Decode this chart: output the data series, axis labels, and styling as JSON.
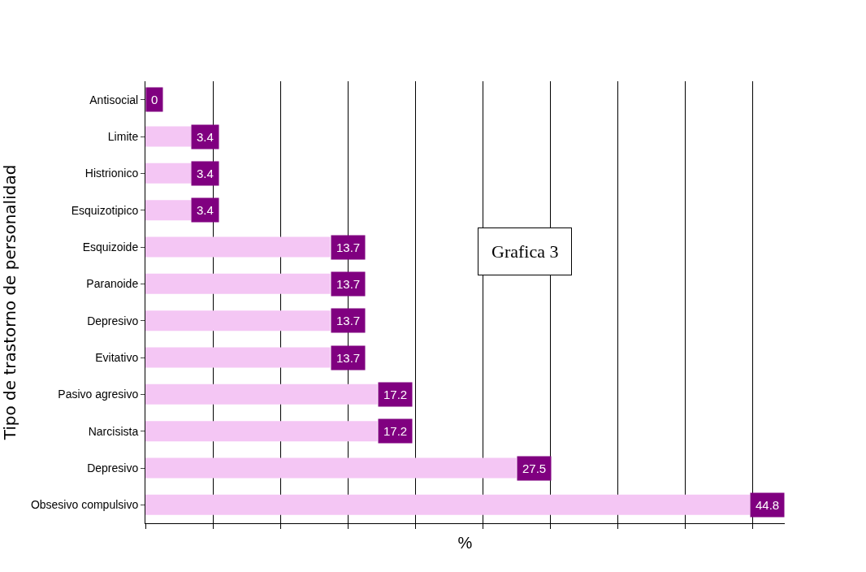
{
  "chart_data": {
    "type": "bar",
    "orientation": "horizontal",
    "categories": [
      "Antisocial",
      "Limite",
      "Histrionico",
      "Esquizotipico",
      "Esquizoide",
      "Paranoide",
      "Depresivo",
      "Evitativo",
      "Pasivo agresivo",
      "Narcisista",
      "Depresivo",
      "Obsesivo compulsivo"
    ],
    "values": [
      0,
      3.4,
      3.4,
      3.4,
      13.7,
      13.7,
      13.7,
      13.7,
      17.2,
      17.2,
      27.5,
      44.8
    ],
    "color": "#f4c6f4",
    "tick_labels": "y",
    "grid": "x",
    "data_labels": true,
    "xlabel": "%",
    "ylabel": "Tipo de trastorno de personalidad",
    "annotations": [
      "Grafica 3"
    ]
  }
}
